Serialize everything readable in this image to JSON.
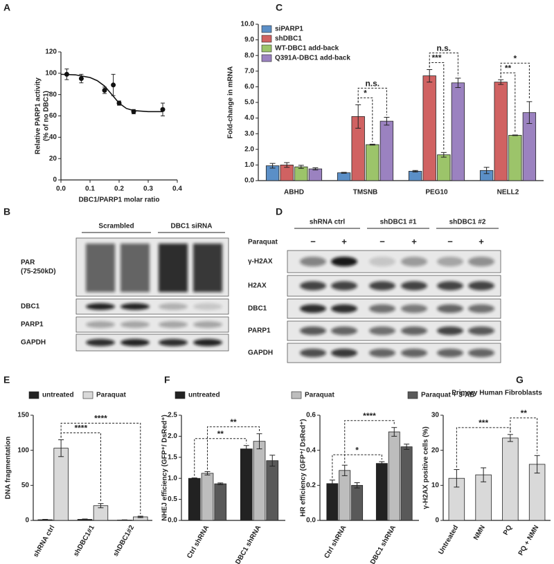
{
  "chart_data": [
    {
      "type": "scatter",
      "panel": "A",
      "x": [
        0.02,
        0.07,
        0.15,
        0.18,
        0.2,
        0.25,
        0.35
      ],
      "values": [
        99,
        95,
        84,
        89,
        72,
        64,
        66
      ],
      "errors": [
        5,
        4,
        3,
        10,
        2,
        2,
        6
      ],
      "fit": {
        "x": [
          0,
          0.05,
          0.1,
          0.125,
          0.15,
          0.175,
          0.2,
          0.225,
          0.25,
          0.3,
          0.35
        ],
        "values": [
          99,
          98.5,
          96,
          93,
          88,
          80,
          72,
          67,
          65,
          64,
          64
        ]
      },
      "color": "#111111",
      "xlim": [
        0,
        0.4
      ],
      "xticks": [
        {
          "value": 0,
          "label": "0.0"
        },
        0.1,
        0.2,
        0.3,
        0.4
      ],
      "ylim": [
        0,
        120
      ],
      "yticks": [
        0,
        20,
        40,
        60,
        80,
        100,
        120
      ],
      "xlabel": "DBC1/PARP1 molar ratio",
      "ylabel": [
        "Relative PARP1 activity",
        "(% of no DBC1)"
      ]
    },
    {
      "type": "bar",
      "panel": "C",
      "categories": [
        "ABHD",
        "TMSNB",
        "PEG10",
        "NELL2"
      ],
      "series": [
        {
          "name": "siPARP1",
          "color": "#5b8fc7",
          "values": [
            0.95,
            0.5,
            0.6,
            0.65
          ],
          "errors": [
            0.15,
            0.03,
            0.05,
            0.2
          ]
        },
        {
          "name": "shDBC1",
          "color": "#d06262",
          "values": [
            1.0,
            4.1,
            6.7,
            6.3
          ],
          "errors": [
            0.15,
            0.75,
            0.4,
            0.15
          ]
        },
        {
          "name": "WT-DBC1 add-back",
          "color": "#9cc46a",
          "values": [
            0.88,
            2.3,
            1.65,
            2.9
          ],
          "errors": [
            0.1,
            0.03,
            0.15,
            0.02
          ]
        },
        {
          "name": "Q391A-DBC1 add-back",
          "color": "#9b82c0",
          "values": [
            0.75,
            3.8,
            6.25,
            4.35
          ],
          "errors": [
            0.07,
            0.25,
            0.3,
            0.7
          ]
        }
      ],
      "ylim": [
        0,
        10
      ],
      "yticks": [
        {
          "value": 0,
          "label": "0.0"
        },
        {
          "value": 1,
          "label": "1.0"
        },
        {
          "value": 2,
          "label": "2.0"
        },
        {
          "value": 3,
          "label": "3.0"
        },
        {
          "value": 4,
          "label": "4.0"
        },
        {
          "value": 5,
          "label": "5.0"
        },
        {
          "value": 6,
          "label": "6.0"
        },
        {
          "value": 7,
          "label": "7.0"
        },
        {
          "value": 8,
          "label": "8.0"
        },
        {
          "value": 9,
          "label": "9.0"
        },
        {
          "value": 10,
          "label": "10.0"
        }
      ],
      "ylabel": "Fold-change in mRNA",
      "legend": "upper left",
      "brackets": [
        {
          "from": [
            1,
            1
          ],
          "to": [
            1,
            2
          ],
          "label": "*"
        },
        {
          "from": [
            1,
            1
          ],
          "to": [
            1,
            3
          ],
          "label": "n.s."
        },
        {
          "from": [
            2,
            1
          ],
          "to": [
            2,
            2
          ],
          "label": "***"
        },
        {
          "from": [
            2,
            1
          ],
          "to": [
            2,
            3
          ],
          "label": "n.s."
        },
        {
          "from": [
            3,
            1
          ],
          "to": [
            3,
            2
          ],
          "label": "**"
        },
        {
          "from": [
            3,
            1
          ],
          "to": [
            3,
            3
          ],
          "label": "*"
        }
      ]
    },
    {
      "type": "bar",
      "panel": "E",
      "categories": [
        "shRNA ctrl",
        "shDBC1#1",
        "shDBC1#2"
      ],
      "series": [
        {
          "name": "untreated",
          "color": "#222222",
          "values": [
            1,
            1.5,
            0.5
          ],
          "errors": [
            0.5,
            0.5,
            0.3
          ]
        },
        {
          "name": "Paraquat",
          "color": "#d9d9d9",
          "values": [
            103,
            21,
            5
          ],
          "errors": [
            12,
            3,
            1
          ]
        }
      ],
      "ylim": [
        0,
        150
      ],
      "yticks": [
        0,
        50,
        100,
        150
      ],
      "ylabel": "DNA fragmentation",
      "legend": "top",
      "brackets": [
        {
          "from": [
            0,
            1
          ],
          "to": [
            1,
            1
          ],
          "label": "****"
        },
        {
          "from": [
            0,
            1
          ],
          "to": [
            2,
            1
          ],
          "label": "****"
        }
      ]
    },
    {
      "type": "bar",
      "panel": "F",
      "categories": [
        "Ctrl shRNA",
        "DBC1 shRNA"
      ],
      "series": [
        {
          "name": "untreated",
          "color": "#222222",
          "values": [
            1.0,
            1.7
          ],
          "errors": [
            0.01,
            0.08
          ]
        },
        {
          "name": "Paraquat",
          "color": "#bdbdbd",
          "values": [
            1.12,
            1.88
          ],
          "errors": [
            0.04,
            0.18
          ]
        },
        {
          "name": "Paraquat + 3-AB",
          "color": "#595959",
          "values": [
            0.87,
            1.42
          ],
          "errors": [
            0.02,
            0.13
          ]
        }
      ],
      "ylim": [
        0,
        2.5
      ],
      "yticks": [
        {
          "value": 0,
          "label": "0.0"
        },
        0.5,
        {
          "value": 1,
          "label": "1.0"
        },
        1.5,
        {
          "value": 2,
          "label": "2.0"
        },
        2.5
      ],
      "ylabel": "NHEJ efficiency (GFP⁺/ DsRed⁺)",
      "legend": "top",
      "brackets": [
        {
          "from": [
            0,
            0
          ],
          "to": [
            1,
            0
          ],
          "label": "**"
        },
        {
          "from": [
            0,
            1
          ],
          "to": [
            1,
            1
          ],
          "label": "**"
        }
      ]
    },
    {
      "type": "bar",
      "categories": [
        "Ctrl shRNA",
        "DBC1 shRNA"
      ],
      "series": [
        {
          "color": "#222222",
          "values": [
            0.21,
            0.325
          ],
          "errors": [
            0.02,
            0.01
          ]
        },
        {
          "color": "#bdbdbd",
          "values": [
            0.285,
            0.505
          ],
          "errors": [
            0.03,
            0.025
          ]
        },
        {
          "color": "#595959",
          "values": [
            0.2,
            0.42
          ],
          "errors": [
            0.015,
            0.015
          ]
        }
      ],
      "ylim": [
        0,
        0.6
      ],
      "yticks": [
        {
          "value": 0,
          "label": "0.0"
        },
        0.2,
        0.4,
        0.6
      ],
      "ylabel": "HR efficiency (GFP⁺/ DsRed⁺)",
      "brackets": [
        {
          "from": [
            0,
            0
          ],
          "to": [
            1,
            0
          ],
          "label": "*"
        },
        {
          "from": [
            0,
            1
          ],
          "to": [
            1,
            1
          ],
          "label": "****"
        }
      ]
    },
    {
      "type": "bar",
      "panel": "G",
      "title": "Primary Human Fibroblasts",
      "categories": [
        "Untreated",
        "NMN",
        "PQ",
        "PQ + NMN"
      ],
      "series": [
        {
          "color": "#d9d9d9",
          "values": [
            12,
            13,
            23.5,
            16
          ],
          "errors": [
            2.5,
            2,
            1,
            2.5
          ]
        }
      ],
      "ylim": [
        0,
        30
      ],
      "yticks": [
        0,
        10,
        20,
        30
      ],
      "ylabel": "γ-H2AX positive cells (%)",
      "brackets": [
        {
          "from": [
            0,
            0
          ],
          "to": [
            2,
            0
          ],
          "label": "***"
        },
        {
          "from": [
            2,
            0
          ],
          "to": [
            3,
            0
          ],
          "label": "**"
        }
      ]
    }
  ],
  "blots": [
    {
      "panel": "B",
      "headers": [
        "Scrambled",
        "DBC1 siRNA"
      ],
      "rows": [
        [
          "PAR",
          "(75-250kD)"
        ],
        [
          "DBC1"
        ],
        [
          "PARP1"
        ],
        [
          "GAPDH"
        ]
      ]
    },
    {
      "panel": "D",
      "headers": [
        "shRNA ctrl",
        "shDBC1 #1",
        "shDBC1 #2"
      ],
      "treatment": "Paraquat",
      "treatment_marks": [
        "−",
        "+",
        "−",
        "+",
        "−",
        "+"
      ],
      "rows": [
        [
          "γ-H2AX"
        ],
        [
          "H2AX"
        ],
        [
          "DBC1"
        ],
        [
          "PARP1"
        ],
        [
          "GAPDH"
        ]
      ]
    }
  ]
}
